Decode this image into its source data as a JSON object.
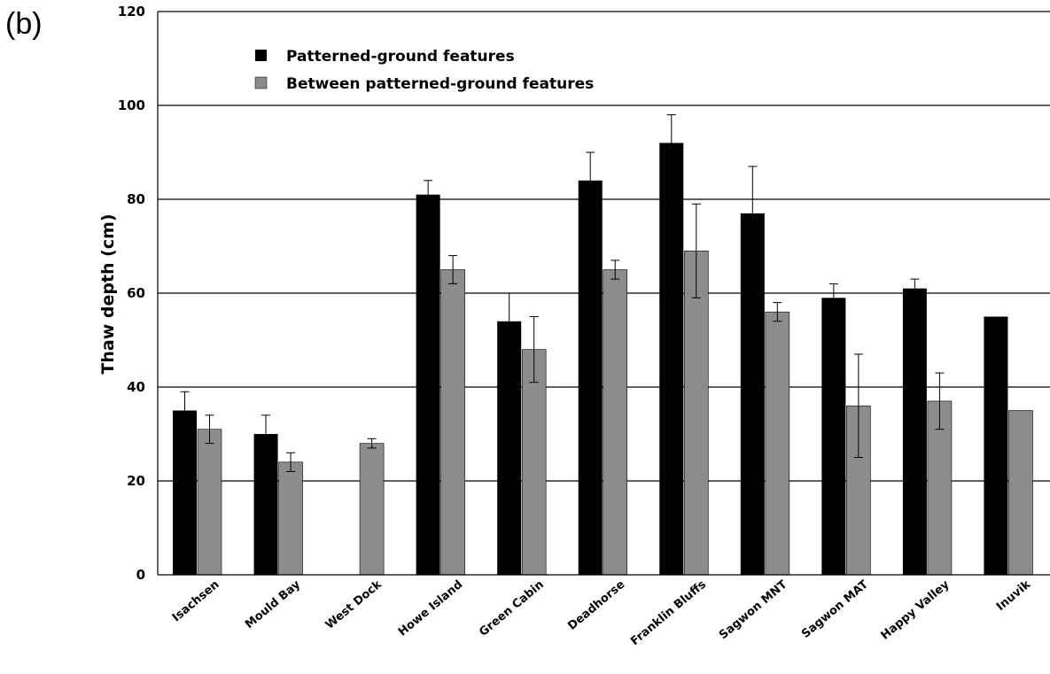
{
  "panel_label": "(b)",
  "colors": {
    "series_1": "#000000",
    "series_2": "#8c8c8c",
    "grid": "#000000"
  },
  "chart_data": {
    "type": "bar",
    "title": "",
    "xlabel": "",
    "ylabel": "Thaw depth (cm)",
    "ylim": [
      0,
      120
    ],
    "yticks": [
      0,
      20,
      40,
      60,
      80,
      100,
      120
    ],
    "grid": "horizontal",
    "legend_position": "top-left",
    "categories": [
      "Isachsen",
      "Mould Bay",
      "West Dock",
      "Howe Island",
      "Green Cabin",
      "Deadhorse",
      "Franklin Bluffs",
      "Sagwon MNT",
      "Sagwon MAT",
      "Happy Valley",
      "Inuvik"
    ],
    "series": [
      {
        "name": "Patterned-ground features",
        "values": [
          35,
          30,
          null,
          81,
          54,
          84,
          92,
          77,
          59,
          61,
          55
        ],
        "error": [
          4,
          4,
          null,
          3,
          6,
          6,
          6,
          10,
          3,
          2,
          null
        ]
      },
      {
        "name": "Between patterned-ground features",
        "values": [
          31,
          24,
          28,
          65,
          48,
          65,
          69,
          56,
          36,
          37,
          35
        ],
        "error": [
          3,
          2,
          1,
          3,
          7,
          2,
          10,
          2,
          11,
          6,
          null
        ]
      }
    ]
  }
}
